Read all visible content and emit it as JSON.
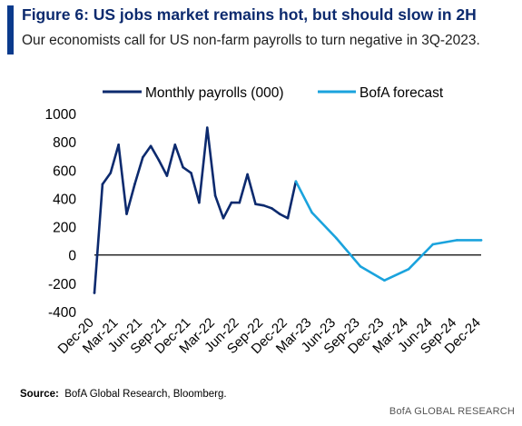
{
  "header": {
    "title": "Figure 6: US jobs market remains hot, but should slow in 2H",
    "subtitle": "Our economists call for US non-farm payrolls to turn negative in 3Q-2023."
  },
  "footer": {
    "source_label": "Source:",
    "source_text": "BofA Global Research, Bloomberg.",
    "credit": "BofA GLOBAL RESEARCH"
  },
  "colors": {
    "accent_bar": "#0a3a8c",
    "title": "#0c2a6e",
    "actual_series": "#0c2a6e",
    "forecast_series": "#1aa3dd",
    "zero_line": "#000000"
  },
  "chart_data": {
    "type": "line",
    "title": "",
    "xlabel": "",
    "ylabel": "",
    "ylim": [
      -400,
      1000
    ],
    "yticks": [
      1000,
      800,
      600,
      400,
      200,
      0,
      -200,
      -400
    ],
    "xlim": [
      "2020-12",
      "2024-12"
    ],
    "xticks": [
      "Dec-20",
      "Mar-21",
      "Jun-21",
      "Sep-21",
      "Dec-21",
      "Mar-22",
      "Jun-22",
      "Sep-22",
      "Dec-22",
      "Mar-23",
      "Jun-23",
      "Sep-23",
      "Dec-23",
      "Mar-24",
      "Jun-24",
      "Sep-24",
      "Dec-24"
    ],
    "legend_position": "top",
    "grid": false,
    "series": [
      {
        "name": "Monthly payrolls (000)",
        "color": "#0c2a6e",
        "points": [
          {
            "x": "2020-12",
            "y": -268
          },
          {
            "x": "2021-01",
            "y": 500
          },
          {
            "x": "2021-02",
            "y": 580
          },
          {
            "x": "2021-03",
            "y": 780
          },
          {
            "x": "2021-04",
            "y": 290
          },
          {
            "x": "2021-05",
            "y": 500
          },
          {
            "x": "2021-06",
            "y": 690
          },
          {
            "x": "2021-07",
            "y": 770
          },
          {
            "x": "2021-08",
            "y": 670
          },
          {
            "x": "2021-09",
            "y": 560
          },
          {
            "x": "2021-10",
            "y": 780
          },
          {
            "x": "2021-11",
            "y": 620
          },
          {
            "x": "2021-12",
            "y": 580
          },
          {
            "x": "2022-01",
            "y": 370
          },
          {
            "x": "2022-02",
            "y": 900
          },
          {
            "x": "2022-03",
            "y": 420
          },
          {
            "x": "2022-04",
            "y": 260
          },
          {
            "x": "2022-05",
            "y": 370
          },
          {
            "x": "2022-06",
            "y": 370
          },
          {
            "x": "2022-07",
            "y": 570
          },
          {
            "x": "2022-08",
            "y": 360
          },
          {
            "x": "2022-09",
            "y": 350
          },
          {
            "x": "2022-10",
            "y": 330
          },
          {
            "x": "2022-11",
            "y": 290
          },
          {
            "x": "2022-12",
            "y": 260
          },
          {
            "x": "2023-01",
            "y": 520
          }
        ]
      },
      {
        "name": "BofA forecast",
        "color": "#1aa3dd",
        "points": [
          {
            "x": "2023-01",
            "y": 520
          },
          {
            "x": "2023-03",
            "y": 300
          },
          {
            "x": "2023-06",
            "y": 120
          },
          {
            "x": "2023-09",
            "y": -80
          },
          {
            "x": "2023-12",
            "y": -180
          },
          {
            "x": "2024-03",
            "y": -100
          },
          {
            "x": "2024-06",
            "y": 75
          },
          {
            "x": "2024-09",
            "y": 105
          },
          {
            "x": "2024-12",
            "y": 105
          }
        ]
      }
    ]
  }
}
